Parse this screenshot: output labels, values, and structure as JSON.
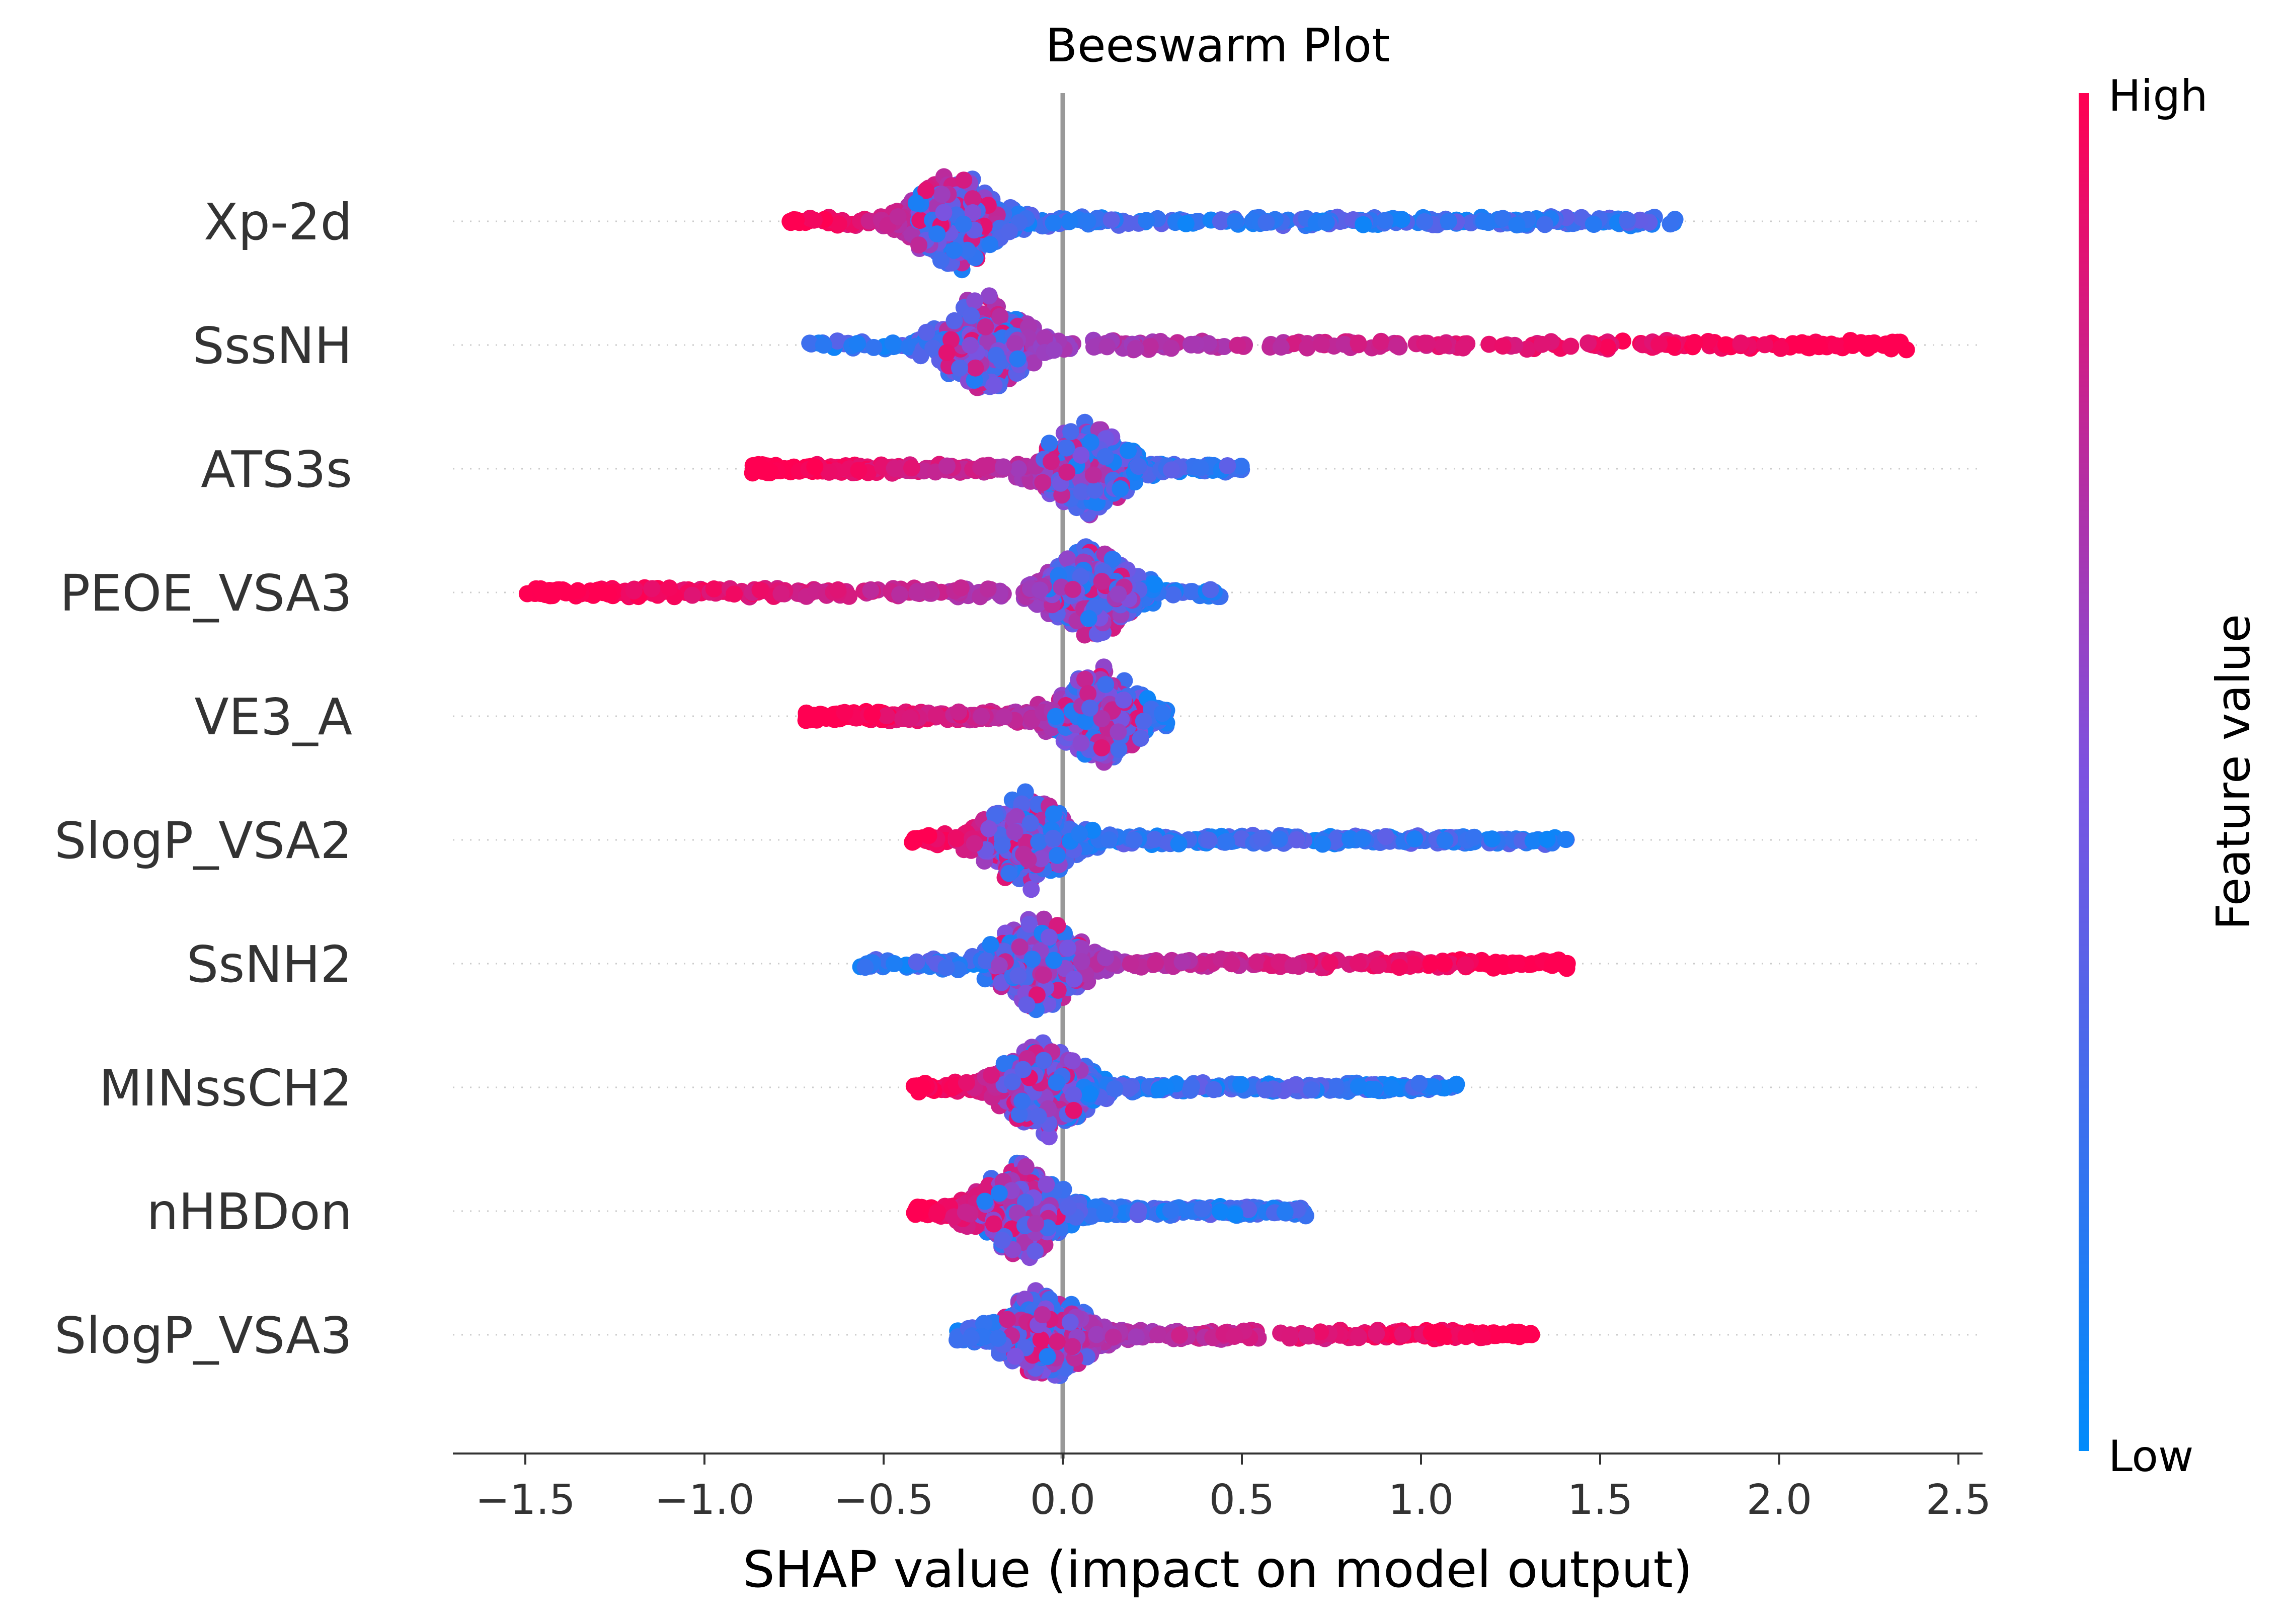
{
  "chart_data": {
    "type": "scatter",
    "subtype": "beeswarm",
    "title": "Beeswarm Plot",
    "xlabel": "SHAP value (impact on model output)",
    "xlim": [
      -1.7,
      2.55
    ],
    "xticks": [
      -1.5,
      -1.0,
      -0.5,
      0.0,
      0.5,
      1.0,
      1.5,
      2.0,
      2.5
    ],
    "xtick_labels": [
      "−1.5",
      "−1.0",
      "−0.5",
      "0.0",
      "0.5",
      "1.0",
      "1.5",
      "2.0",
      "2.5"
    ],
    "zero_line": 0,
    "features": [
      {
        "name": "Xp-2d",
        "range": [
          -0.77,
          1.71
        ],
        "mode": -0.3,
        "high_side": "left"
      },
      {
        "name": "SssNH",
        "range": [
          -0.72,
          2.36
        ],
        "mode": -0.22,
        "high_side": "right"
      },
      {
        "name": "ATS3s",
        "range": [
          -0.87,
          0.51
        ],
        "mode": 0.06,
        "high_side": "left"
      },
      {
        "name": "PEOE_VSA3",
        "range": [
          -1.5,
          0.44
        ],
        "mode": 0.08,
        "high_side": "left"
      },
      {
        "name": "VE3_A",
        "range": [
          -0.72,
          0.29
        ],
        "mode": 0.1,
        "high_side": "left"
      },
      {
        "name": "SlogP_VSA2",
        "range": [
          -0.42,
          1.42
        ],
        "mode": -0.1,
        "high_side": "left"
      },
      {
        "name": "SsNH2",
        "range": [
          -0.58,
          1.41
        ],
        "mode": -0.07,
        "high_side": "right"
      },
      {
        "name": "MINssCH2",
        "range": [
          -0.42,
          1.15
        ],
        "mode": -0.05,
        "high_side": "left"
      },
      {
        "name": "nHBDon",
        "range": [
          -0.42,
          0.68
        ],
        "mode": -0.12,
        "high_side": "left"
      },
      {
        "name": "SlogP_VSA3",
        "range": [
          -0.3,
          1.31
        ],
        "mode": -0.05,
        "high_side": "right"
      }
    ],
    "colorbar": {
      "label": "Feature value",
      "high_label": "High",
      "low_label": "Low",
      "high_color": "#ff0052",
      "mid_color": "#7c52e0",
      "low_color": "#008bfb"
    }
  }
}
